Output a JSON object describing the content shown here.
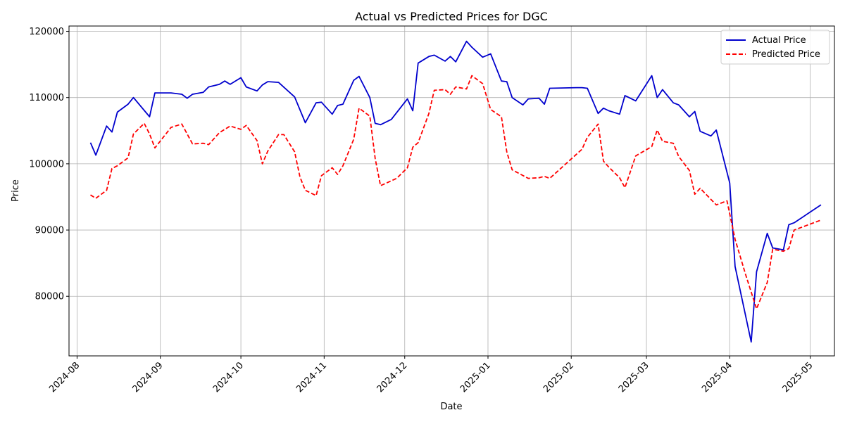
{
  "chart_data": {
    "type": "line",
    "title": "Actual vs Predicted Prices for DGC",
    "xlabel": "Date",
    "ylabel": "Price",
    "xlim": [
      "2024-07-29",
      "2025-05-10"
    ],
    "ylim": [
      71000,
      120800
    ],
    "grid": true,
    "legend_position": "top-right",
    "x_ticks": [
      "2024-08-01",
      "2024-09-01",
      "2024-10-01",
      "2024-11-01",
      "2024-12-01",
      "2025-01-01",
      "2025-02-01",
      "2025-03-01",
      "2025-04-01",
      "2025-05-01"
    ],
    "x_tick_labels": [
      "2024-08",
      "2024-09",
      "2024-10",
      "2024-11",
      "2024-12",
      "2025-01",
      "2025-02",
      "2025-03",
      "2025-04",
      "2025-05"
    ],
    "y_ticks": [
      80000,
      90000,
      100000,
      110000,
      120000
    ],
    "y_tick_labels": [
      "80000",
      "90000",
      "100000",
      "110000",
      "120000"
    ],
    "series": [
      {
        "name": "Actual Price",
        "color": "#0000cd",
        "style": "solid",
        "points": [
          [
            "2024-08-06",
            103200
          ],
          [
            "2024-08-08",
            101300
          ],
          [
            "2024-08-12",
            105700
          ],
          [
            "2024-08-14",
            104800
          ],
          [
            "2024-08-16",
            107800
          ],
          [
            "2024-08-20",
            109000
          ],
          [
            "2024-08-22",
            110000
          ],
          [
            "2024-08-28",
            107100
          ],
          [
            "2024-08-30",
            110700
          ],
          [
            "2024-09-05",
            110700
          ],
          [
            "2024-09-09",
            110500
          ],
          [
            "2024-09-11",
            109900
          ],
          [
            "2024-09-13",
            110500
          ],
          [
            "2024-09-17",
            110800
          ],
          [
            "2024-09-19",
            111600
          ],
          [
            "2024-09-23",
            112000
          ],
          [
            "2024-09-25",
            112500
          ],
          [
            "2024-09-27",
            112000
          ],
          [
            "2024-10-01",
            113000
          ],
          [
            "2024-10-03",
            111600
          ],
          [
            "2024-10-07",
            111000
          ],
          [
            "2024-10-09",
            111900
          ],
          [
            "2024-10-11",
            112400
          ],
          [
            "2024-10-15",
            112300
          ],
          [
            "2024-10-21",
            110100
          ],
          [
            "2024-10-25",
            106200
          ],
          [
            "2024-10-29",
            109200
          ],
          [
            "2024-10-31",
            109300
          ],
          [
            "2024-11-04",
            107500
          ],
          [
            "2024-11-06",
            108800
          ],
          [
            "2024-11-08",
            109000
          ],
          [
            "2024-11-12",
            112600
          ],
          [
            "2024-11-14",
            113200
          ],
          [
            "2024-11-18",
            110000
          ],
          [
            "2024-11-20",
            106100
          ],
          [
            "2024-11-22",
            105900
          ],
          [
            "2024-11-26",
            106700
          ],
          [
            "2024-12-02",
            109800
          ],
          [
            "2024-12-04",
            108000
          ],
          [
            "2024-12-06",
            115200
          ],
          [
            "2024-12-10",
            116200
          ],
          [
            "2024-12-12",
            116400
          ],
          [
            "2024-12-16",
            115500
          ],
          [
            "2024-12-18",
            116200
          ],
          [
            "2024-12-20",
            115400
          ],
          [
            "2024-12-24",
            118500
          ],
          [
            "2024-12-26",
            117600
          ],
          [
            "2024-12-30",
            116100
          ],
          [
            "2025-01-02",
            116600
          ],
          [
            "2025-01-06",
            112500
          ],
          [
            "2025-01-08",
            112400
          ],
          [
            "2025-01-10",
            110000
          ],
          [
            "2025-01-14",
            108900
          ],
          [
            "2025-01-16",
            109800
          ],
          [
            "2025-01-20",
            109900
          ],
          [
            "2025-01-22",
            109000
          ],
          [
            "2025-01-24",
            111400
          ],
          [
            "2025-02-03",
            111500
          ],
          [
            "2025-02-05",
            111500
          ],
          [
            "2025-02-07",
            111400
          ],
          [
            "2025-02-11",
            107600
          ],
          [
            "2025-02-13",
            108400
          ],
          [
            "2025-02-15",
            108000
          ],
          [
            "2025-02-19",
            107500
          ],
          [
            "2025-02-21",
            110300
          ],
          [
            "2025-02-25",
            109500
          ],
          [
            "2025-03-03",
            113300
          ],
          [
            "2025-03-05",
            110000
          ],
          [
            "2025-03-07",
            111200
          ],
          [
            "2025-03-11",
            109200
          ],
          [
            "2025-03-13",
            108900
          ],
          [
            "2025-03-17",
            107100
          ],
          [
            "2025-03-19",
            107900
          ],
          [
            "2025-03-21",
            104900
          ],
          [
            "2025-03-25",
            104200
          ],
          [
            "2025-03-27",
            105100
          ],
          [
            "2025-04-01",
            97100
          ],
          [
            "2025-04-03",
            84500
          ],
          [
            "2025-04-09",
            73100
          ],
          [
            "2025-04-11",
            83700
          ],
          [
            "2025-04-15",
            89500
          ],
          [
            "2025-04-17",
            87300
          ],
          [
            "2025-04-21",
            87000
          ],
          [
            "2025-04-23",
            90800
          ],
          [
            "2025-04-25",
            91100
          ],
          [
            "2025-05-05",
            93800
          ]
        ]
      },
      {
        "name": "Predicted Price",
        "color": "#ff0000",
        "style": "dashed",
        "points": [
          [
            "2024-08-06",
            95300
          ],
          [
            "2024-08-08",
            94800
          ],
          [
            "2024-08-12",
            96000
          ],
          [
            "2024-08-14",
            99300
          ],
          [
            "2024-08-16",
            99700
          ],
          [
            "2024-08-20",
            100900
          ],
          [
            "2024-08-22",
            104500
          ],
          [
            "2024-08-26",
            106100
          ],
          [
            "2024-08-28",
            104500
          ],
          [
            "2024-08-30",
            102400
          ],
          [
            "2024-09-05",
            105500
          ],
          [
            "2024-09-09",
            106000
          ],
          [
            "2024-09-13",
            103000
          ],
          [
            "2024-09-17",
            103100
          ],
          [
            "2024-09-19",
            102900
          ],
          [
            "2024-09-23",
            104700
          ],
          [
            "2024-09-27",
            105700
          ],
          [
            "2024-10-01",
            105200
          ],
          [
            "2024-10-03",
            105800
          ],
          [
            "2024-10-07",
            103500
          ],
          [
            "2024-10-09",
            100000
          ],
          [
            "2024-10-11",
            101900
          ],
          [
            "2024-10-15",
            104400
          ],
          [
            "2024-10-17",
            104400
          ],
          [
            "2024-10-21",
            101800
          ],
          [
            "2024-10-23",
            98000
          ],
          [
            "2024-10-25",
            96000
          ],
          [
            "2024-10-29",
            95200
          ],
          [
            "2024-10-31",
            98200
          ],
          [
            "2024-11-04",
            99400
          ],
          [
            "2024-11-06",
            98400
          ],
          [
            "2024-11-08",
            99700
          ],
          [
            "2024-11-12",
            103700
          ],
          [
            "2024-11-14",
            108400
          ],
          [
            "2024-11-18",
            107200
          ],
          [
            "2024-11-20",
            100800
          ],
          [
            "2024-11-22",
            96700
          ],
          [
            "2024-11-28",
            97800
          ],
          [
            "2024-12-02",
            99400
          ],
          [
            "2024-12-04",
            102500
          ],
          [
            "2024-12-06",
            103200
          ],
          [
            "2024-12-10",
            107600
          ],
          [
            "2024-12-12",
            111100
          ],
          [
            "2024-12-16",
            111200
          ],
          [
            "2024-12-18",
            110500
          ],
          [
            "2024-12-20",
            111600
          ],
          [
            "2024-12-24",
            111300
          ],
          [
            "2024-12-26",
            113300
          ],
          [
            "2024-12-30",
            112100
          ],
          [
            "2025-01-02",
            108200
          ],
          [
            "2025-01-06",
            107100
          ],
          [
            "2025-01-08",
            101800
          ],
          [
            "2025-01-10",
            99100
          ],
          [
            "2025-01-16",
            97800
          ],
          [
            "2025-01-20",
            97900
          ],
          [
            "2025-01-22",
            98100
          ],
          [
            "2025-01-24",
            97800
          ],
          [
            "2025-02-05",
            102200
          ],
          [
            "2025-02-07",
            104000
          ],
          [
            "2025-02-11",
            106000
          ],
          [
            "2025-02-13",
            100400
          ],
          [
            "2025-02-15",
            99500
          ],
          [
            "2025-02-19",
            97900
          ],
          [
            "2025-02-21",
            96400
          ],
          [
            "2025-02-25",
            101200
          ],
          [
            "2025-03-03",
            102600
          ],
          [
            "2025-03-05",
            105100
          ],
          [
            "2025-03-07",
            103400
          ],
          [
            "2025-03-11",
            103100
          ],
          [
            "2025-03-13",
            101100
          ],
          [
            "2025-03-17",
            99000
          ],
          [
            "2025-03-19",
            95400
          ],
          [
            "2025-03-21",
            96300
          ],
          [
            "2025-03-27",
            93800
          ],
          [
            "2025-03-31",
            94400
          ],
          [
            "2025-04-03",
            88600
          ],
          [
            "2025-04-07",
            83200
          ],
          [
            "2025-04-11",
            78100
          ],
          [
            "2025-04-15",
            82100
          ],
          [
            "2025-04-17",
            87100
          ],
          [
            "2025-04-21",
            86800
          ],
          [
            "2025-04-23",
            87200
          ],
          [
            "2025-04-25",
            90000
          ],
          [
            "2025-05-05",
            91500
          ]
        ]
      }
    ]
  }
}
